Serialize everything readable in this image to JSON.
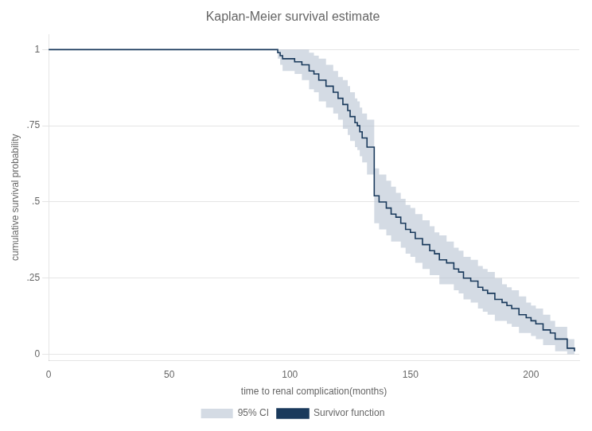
{
  "chart_data": {
    "type": "step",
    "title": "Kaplan-Meier survival estimate",
    "xlabel": "time to renal complication(months)",
    "ylabel": "cumulative survival probability",
    "x": [
      0,
      88,
      95,
      96,
      97,
      98,
      99,
      100,
      102,
      105,
      108,
      110,
      112,
      115,
      118,
      120,
      122,
      124,
      125,
      127,
      128,
      129,
      130,
      132,
      135,
      137,
      140,
      142,
      144,
      146,
      148,
      150,
      152,
      155,
      158,
      160,
      162,
      165,
      168,
      170,
      172,
      175,
      178,
      180,
      182,
      185,
      188,
      190,
      192,
      195,
      198,
      200,
      202,
      205,
      208,
      210,
      215,
      218
    ],
    "series": [
      {
        "name": "95% CI",
        "color": "#b0bece",
        "upper": [
          1.0,
          1.0,
          1.0,
          1.0,
          1.0,
          1.0,
          1.0,
          1.0,
          1.0,
          1.0,
          0.99,
          0.98,
          0.97,
          0.95,
          0.93,
          0.91,
          0.9,
          0.88,
          0.86,
          0.84,
          0.83,
          0.81,
          0.79,
          0.77,
          0.61,
          0.59,
          0.57,
          0.55,
          0.53,
          0.51,
          0.49,
          0.48,
          0.46,
          0.44,
          0.42,
          0.4,
          0.39,
          0.37,
          0.35,
          0.34,
          0.32,
          0.31,
          0.29,
          0.28,
          0.27,
          0.25,
          0.23,
          0.22,
          0.21,
          0.19,
          0.17,
          0.16,
          0.15,
          0.13,
          0.11,
          0.09,
          0.05,
          0.03
        ],
        "lower": [
          1.0,
          1.0,
          0.97,
          0.95,
          0.93,
          0.93,
          0.93,
          0.93,
          0.92,
          0.9,
          0.87,
          0.86,
          0.83,
          0.81,
          0.79,
          0.77,
          0.74,
          0.72,
          0.7,
          0.68,
          0.67,
          0.65,
          0.63,
          0.59,
          0.43,
          0.41,
          0.39,
          0.37,
          0.37,
          0.35,
          0.33,
          0.32,
          0.3,
          0.28,
          0.26,
          0.26,
          0.23,
          0.23,
          0.21,
          0.2,
          0.18,
          0.17,
          0.15,
          0.14,
          0.13,
          0.11,
          0.11,
          0.1,
          0.09,
          0.07,
          0.07,
          0.06,
          0.05,
          0.03,
          0.03,
          0.01,
          0.0,
          0.0
        ]
      },
      {
        "name": "Survivor function",
        "color": "#1a3a5c",
        "values": [
          1.0,
          1.0,
          0.99,
          0.98,
          0.97,
          0.97,
          0.97,
          0.97,
          0.96,
          0.95,
          0.93,
          0.92,
          0.9,
          0.88,
          0.86,
          0.84,
          0.82,
          0.8,
          0.78,
          0.76,
          0.75,
          0.73,
          0.71,
          0.68,
          0.52,
          0.5,
          0.48,
          0.46,
          0.45,
          0.43,
          0.41,
          0.4,
          0.38,
          0.36,
          0.34,
          0.33,
          0.31,
          0.3,
          0.28,
          0.27,
          0.25,
          0.24,
          0.22,
          0.21,
          0.2,
          0.18,
          0.17,
          0.16,
          0.15,
          0.13,
          0.12,
          0.11,
          0.1,
          0.08,
          0.07,
          0.05,
          0.02,
          0.01
        ]
      }
    ],
    "xlim": [
      0,
      220
    ],
    "ylim": [
      -0.02,
      1.05
    ],
    "xticks": [
      0,
      50,
      100,
      150,
      200
    ],
    "yticks": [
      0,
      {
        "value": 0.25,
        "label": ".25"
      },
      {
        "value": 0.5,
        "label": ".5"
      },
      {
        "value": 0.75,
        "label": ".75"
      },
      1
    ],
    "grid": "y",
    "legend": "bottom"
  }
}
